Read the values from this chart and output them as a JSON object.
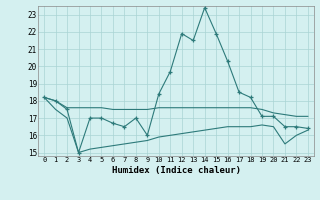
{
  "xlabel": "Humidex (Indice chaleur)",
  "x": [
    0,
    1,
    2,
    3,
    4,
    5,
    6,
    7,
    8,
    9,
    10,
    11,
    12,
    13,
    14,
    15,
    16,
    17,
    18,
    19,
    20,
    21,
    22,
    23
  ],
  "line1": [
    18.2,
    18.0,
    17.5,
    15.0,
    17.0,
    17.0,
    16.7,
    16.5,
    17.0,
    16.0,
    18.4,
    19.7,
    21.9,
    21.5,
    23.4,
    21.9,
    20.3,
    18.5,
    18.2,
    17.1,
    17.1,
    16.5,
    16.5,
    16.4
  ],
  "line2": [
    18.2,
    18.0,
    17.6,
    17.6,
    17.6,
    17.6,
    17.5,
    17.5,
    17.5,
    17.5,
    17.6,
    17.6,
    17.6,
    17.6,
    17.6,
    17.6,
    17.6,
    17.6,
    17.6,
    17.5,
    17.3,
    17.2,
    17.1,
    17.1
  ],
  "line3": [
    18.2,
    17.5,
    17.0,
    15.0,
    15.2,
    15.3,
    15.4,
    15.5,
    15.6,
    15.7,
    15.9,
    16.0,
    16.1,
    16.2,
    16.3,
    16.4,
    16.5,
    16.5,
    16.5,
    16.6,
    16.5,
    15.5,
    16.0,
    16.3
  ],
  "color": "#2d7a7a",
  "bg_color": "#d4f0f0",
  "grid_color": "#aad4d4",
  "ylim_min": 15,
  "ylim_max": 23.5,
  "yticks": [
    15,
    16,
    17,
    18,
    19,
    20,
    21,
    22,
    23
  ]
}
